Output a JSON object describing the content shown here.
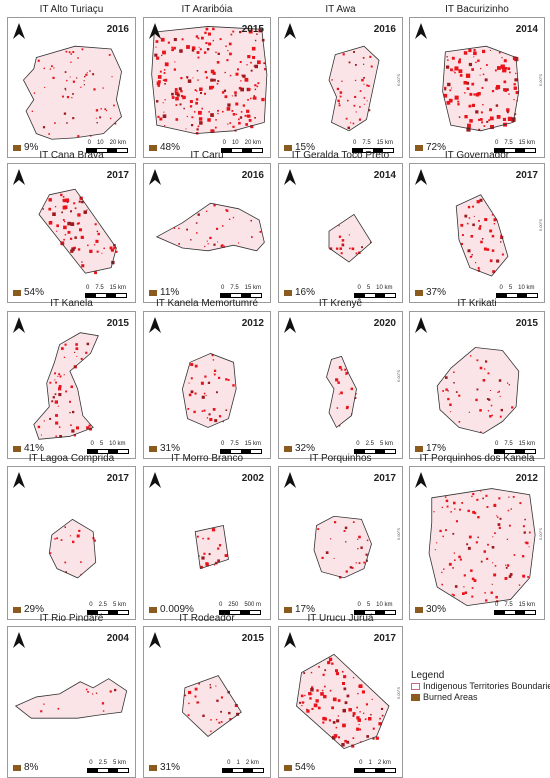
{
  "panels": [
    {
      "title": "IT Alto Turiaçu",
      "year": "2016",
      "percent": "9%",
      "scale": [
        "0",
        "10",
        "20 km"
      ],
      "coord": "",
      "intensity": 0.12,
      "shape": "alto"
    },
    {
      "title": "IT Araribóia",
      "year": "2015",
      "percent": "48%",
      "scale": [
        "0",
        "10",
        "20 km"
      ],
      "coord": "",
      "intensity": 0.6,
      "shape": "arariboia"
    },
    {
      "title": "IT Awa",
      "year": "2016",
      "percent": "15%",
      "scale": [
        "0",
        "7.5",
        "15 km"
      ],
      "coord": "5.00°S",
      "intensity": 0.2,
      "shape": "awa"
    },
    {
      "title": "IT Bacurizinho",
      "year": "2014",
      "percent": "72%",
      "scale": [
        "0",
        "7.5",
        "15 km"
      ],
      "coord": "5.00°S",
      "intensity": 0.8,
      "shape": "bacurizinho"
    },
    {
      "title": "IT Cana Brava",
      "year": "2017",
      "percent": "54%",
      "scale": [
        "0",
        "7.5",
        "15 km"
      ],
      "coord": "",
      "intensity": 0.62,
      "shape": "canabrava"
    },
    {
      "title": "IT Caru",
      "year": "2016",
      "percent": "11%",
      "scale": [
        "0",
        "7.5",
        "15 km"
      ],
      "coord": "",
      "intensity": 0.14,
      "shape": "caru"
    },
    {
      "title": "IT Geralda Toco Preto",
      "year": "2014",
      "percent": "16%",
      "scale": [
        "0",
        "5",
        "10 km"
      ],
      "coord": "",
      "intensity": 0.2,
      "shape": "geralda"
    },
    {
      "title": "IT Governador",
      "year": "2017",
      "percent": "37%",
      "scale": [
        "0",
        "5",
        "10 km"
      ],
      "coord": "5.00°S",
      "intensity": 0.45,
      "shape": "governador"
    },
    {
      "title": "IT Kanela",
      "year": "2015",
      "percent": "41%",
      "scale": [
        "0",
        "5",
        "10 km"
      ],
      "coord": "",
      "intensity": 0.45,
      "shape": "kanela"
    },
    {
      "title": "IT Kanela Memortumré",
      "year": "2012",
      "percent": "31%",
      "scale": [
        "0",
        "7.5",
        "15 km"
      ],
      "coord": "",
      "intensity": 0.38,
      "shape": "memortumre"
    },
    {
      "title": "IT Krenyê",
      "year": "2020",
      "percent": "32%",
      "scale": [
        "0",
        "2.5",
        "5 km"
      ],
      "coord": "5.00°S",
      "intensity": 0.4,
      "shape": "krenye"
    },
    {
      "title": "IT Krikati",
      "year": "2015",
      "percent": "17%",
      "scale": [
        "0",
        "7.5",
        "15 km"
      ],
      "coord": "",
      "intensity": 0.2,
      "shape": "krikati"
    },
    {
      "title": "IT Lagoa Comprida",
      "year": "2017",
      "percent": "29%",
      "scale": [
        "0",
        "2.5",
        "5 km"
      ],
      "coord": "",
      "intensity": 0.35,
      "shape": "lagoa"
    },
    {
      "title": "IT Morro Branco",
      "year": "2002",
      "percent": "0.009%",
      "scale": [
        "0",
        "250",
        "500 m"
      ],
      "coord": "",
      "intensity": 0.5,
      "shape": "morro"
    },
    {
      "title": "IT Porquinhos",
      "year": "2017",
      "percent": "17%",
      "scale": [
        "0",
        "5",
        "10 km"
      ],
      "coord": "5.00°S",
      "intensity": 0.22,
      "shape": "porquinhos"
    },
    {
      "title": "IT Porquinhos dos Kanela",
      "year": "2012",
      "percent": "30%",
      "scale": [
        "0",
        "7.5",
        "15 km"
      ],
      "coord": "5.00°S",
      "intensity": 0.3,
      "shape": "porquinhoskanela"
    },
    {
      "title": "IT Rio Pindaré",
      "year": "2004",
      "percent": "8%",
      "scale": [
        "0",
        "2.5",
        "5 km"
      ],
      "coord": "",
      "intensity": 0.1,
      "shape": "pindare"
    },
    {
      "title": "IT Rodeador",
      "year": "2015",
      "percent": "31%",
      "scale": [
        "0",
        "1",
        "2 km"
      ],
      "coord": "",
      "intensity": 0.4,
      "shape": "rodeador"
    },
    {
      "title": "IT Urucu Juruá",
      "year": "2017",
      "percent": "54%",
      "scale": [
        "0",
        "1",
        "2 km"
      ],
      "coord": "5.00°S",
      "intensity": 0.6,
      "shape": "urucu"
    }
  ],
  "legend": {
    "title": "Legend",
    "items": [
      {
        "label": "Indigenous Territories Boundaries",
        "fill": "#ffffff",
        "stroke": "#c9628a"
      },
      {
        "label": "Burned Areas",
        "fill": "#8b5a1e",
        "stroke": "#8b5a1e"
      }
    ]
  },
  "colors": {
    "burn_red": "#e8141c",
    "burn_pink": "#f6c9cf",
    "boundary": "#333333",
    "pct_swatch": "#8b5a1e"
  }
}
